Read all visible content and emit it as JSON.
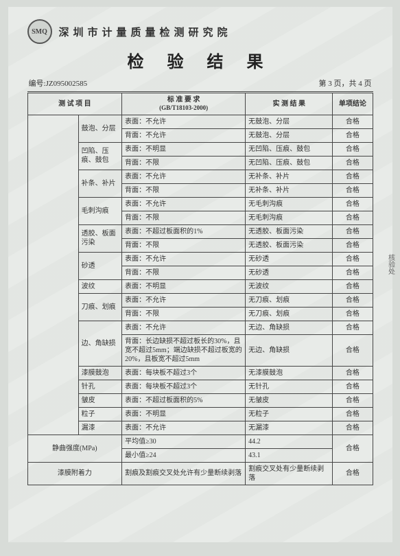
{
  "logo_text": "SMQ",
  "org_name": "深圳市计量质量检测研究院",
  "title": "检 验 结 果",
  "report_no_label": "编号:",
  "report_no": "JZ095002585",
  "page_info": "第 3 页，共 4 页",
  "headers": {
    "item": "测 试 项 目",
    "standard": "标 准 要 求",
    "standard_sub": "(GB/T18103-2000)",
    "result": "实 测 结 果",
    "conclusion": "单项结论"
  },
  "rows": [
    {
      "item": "",
      "sub": "鼓泡、分层",
      "std": "表面：不允许",
      "res": "无鼓泡、分层",
      "conc": "合格"
    },
    {
      "item": "",
      "sub": "",
      "std": "背面：不允许",
      "res": "无鼓泡、分层",
      "conc": "合格"
    },
    {
      "item": "",
      "sub": "凹陷、压痕、鼓包",
      "std": "表面：不明显",
      "res": "无凹陷、压痕、鼓包",
      "conc": "合格"
    },
    {
      "item": "",
      "sub": "",
      "std": "背面：不限",
      "res": "无凹陷、压痕、鼓包",
      "conc": "合格"
    },
    {
      "item": "",
      "sub": "补条、补片",
      "std": "表面：不允许",
      "res": "无补条、补片",
      "conc": "合格"
    },
    {
      "item": "",
      "sub": "",
      "std": "背面：不限",
      "res": "无补条、补片",
      "conc": "合格"
    },
    {
      "item": "",
      "sub": "毛刺沟痕",
      "std": "表面：不允许",
      "res": "无毛刺沟痕",
      "conc": "合格"
    },
    {
      "item": "",
      "sub": "",
      "std": "背面：不限",
      "res": "无毛刺沟痕",
      "conc": "合格"
    },
    {
      "item": "",
      "sub": "透胶、板面污染",
      "std": "表面：不超过板面积的1%",
      "res": "无透胶、板面污染",
      "conc": "合格"
    },
    {
      "item": "",
      "sub": "",
      "std": "背面：不限",
      "res": "无透胶、板面污染",
      "conc": "合格"
    },
    {
      "item": "",
      "sub": "砂透",
      "std": "表面：不允许",
      "res": "无砂透",
      "conc": "合格"
    },
    {
      "item": "",
      "sub": "",
      "std": "背面：不限",
      "res": "无砂透",
      "conc": "合格"
    },
    {
      "item": "",
      "sub": "波纹",
      "std": "表面：不明显",
      "res": "无波纹",
      "conc": "合格"
    },
    {
      "item": "",
      "sub": "刀痕、划痕",
      "std": "表面：不允许",
      "res": "无刀痕、划痕",
      "conc": "合格"
    },
    {
      "item": "",
      "sub": "",
      "std": "背面：不限",
      "res": "无刀痕、划痕",
      "conc": "合格"
    },
    {
      "item": "",
      "sub": "边、角缺损",
      "std": "表面：不允许",
      "res": "无边、角缺损",
      "conc": "合格"
    },
    {
      "item": "",
      "sub": "",
      "std": "背面：长边缺损不超过板长的30%，且宽不超过5mm；端边缺损不超过板宽的20%，且板宽不超过5mm",
      "res": "无边、角缺损",
      "conc": "合格"
    },
    {
      "item": "",
      "sub": "漆膜鼓泡",
      "std": "表面：每块板不超过3个",
      "res": "无漆膜鼓泡",
      "conc": "合格"
    },
    {
      "item": "",
      "sub": "针孔",
      "std": "表面：每块板不超过3个",
      "res": "无针孔",
      "conc": "合格"
    },
    {
      "item": "",
      "sub": "皱皮",
      "std": "表面：不超过板面积的5%",
      "res": "无皱皮",
      "conc": "合格"
    },
    {
      "item": "",
      "sub": "粒子",
      "std": "表面：不明显",
      "res": "无粒子",
      "conc": "合格"
    },
    {
      "item": "",
      "sub": "漏漆",
      "std": "表面：不允许",
      "res": "无漏漆",
      "conc": "合格"
    }
  ],
  "strength": {
    "item": "静曲强度(MPa)",
    "avg_label": "平均值≥30",
    "avg_val": "44.2",
    "min_label": "最小值≥24",
    "min_val": "43.1",
    "conc": "合格"
  },
  "adhesion": {
    "item": "漆膜附着力",
    "std": "割痕及割痕交叉处允许有少量断续剥落",
    "res": "割痕交叉处有少量断续剥落",
    "conc": "合格"
  }
}
